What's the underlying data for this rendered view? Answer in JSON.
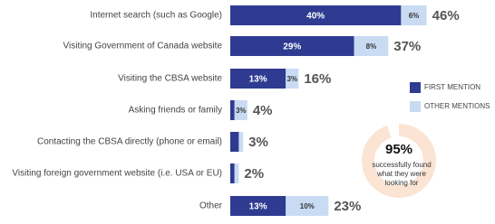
{
  "chart_data": [
    {
      "type": "stacked-bar",
      "orientation": "horizontal",
      "categories": [
        "Internet search (such as Google)",
        "Visiting Government of Canada website",
        "Visiting the CBSA website",
        "Asking friends or family",
        "Contacting the CBSA directly (phone or email)",
        "Visiting foreign government website (i.e. USA or EU)",
        "Other"
      ],
      "series": [
        {
          "name": "FIRST MENTION",
          "color": "#2e3b91",
          "values": [
            40,
            29,
            13,
            1,
            2,
            1,
            13
          ],
          "value_labels": [
            "40%",
            "29%",
            "13%",
            null,
            null,
            null,
            "13%"
          ]
        },
        {
          "name": "OTHER MENTIONS",
          "color": "#c9dbf3",
          "values": [
            6,
            8,
            3,
            3,
            1,
            1,
            10
          ],
          "value_labels": [
            "6%",
            "8%",
            "3%",
            "3%",
            null,
            null,
            "10%"
          ]
        }
      ],
      "totals": [
        46,
        37,
        16,
        4,
        3,
        2,
        23
      ],
      "total_labels": [
        "46%",
        "37%",
        "16%",
        "4%",
        "3%",
        "2%",
        "23%"
      ],
      "xlim": [
        0,
        62
      ]
    },
    {
      "type": "donut",
      "values": [
        95,
        5
      ],
      "colors": [
        "#fbe4d3",
        "#ffffff"
      ],
      "value_labels": [
        "95%",
        null
      ],
      "annotation_lines": [
        "successfully found",
        "what they were",
        "looking for"
      ]
    }
  ]
}
